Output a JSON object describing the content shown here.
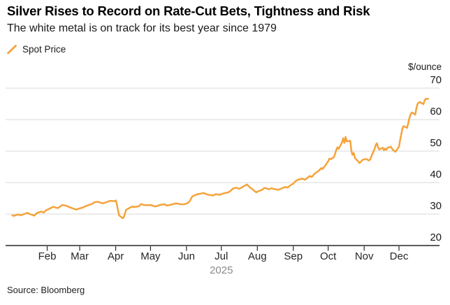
{
  "chart_data": {
    "type": "line",
    "title": "Silver Rises to Record on Rate-Cut Bets, Tightness and Risk",
    "subtitle": "The white metal is on track for its best year since 1979",
    "unit_label": "$/ounce",
    "source": "Source: Bloomberg",
    "grid": "horizontal-only",
    "legend_position": "top-left",
    "legend": [
      {
        "label": "Spot Price",
        "color": "#F5A33B"
      }
    ],
    "x_axis": {
      "year_label": "2025",
      "tick_labels": [
        "Feb",
        "Mar",
        "Apr",
        "May",
        "Jun",
        "Jul",
        "Aug",
        "Sep",
        "Oct",
        "Nov",
        "Dec"
      ],
      "tick_dates": [
        "2025-02-01",
        "2025-03-01",
        "2025-04-01",
        "2025-05-01",
        "2025-06-01",
        "2025-07-01",
        "2025-08-01",
        "2025-09-01",
        "2025-10-01",
        "2025-11-01",
        "2025-12-01"
      ],
      "range": [
        "2025-01-01",
        "2025-12-31"
      ]
    },
    "y_axis": {
      "side": "right",
      "ticks": [
        70,
        60,
        50,
        40,
        30,
        20
      ],
      "range": [
        20,
        70
      ]
    },
    "series": [
      {
        "name": "Spot Price",
        "color": "#F5A33B",
        "points": [
          [
            "2025-01-02",
            29.6
          ],
          [
            "2025-01-03",
            29.4
          ],
          [
            "2025-01-07",
            29.9
          ],
          [
            "2025-01-09",
            29.6
          ],
          [
            "2025-01-13",
            30.1
          ],
          [
            "2025-01-15",
            30.4
          ],
          [
            "2025-01-17",
            30.0
          ],
          [
            "2025-01-21",
            29.5
          ],
          [
            "2025-01-23",
            30.3
          ],
          [
            "2025-01-27",
            30.8
          ],
          [
            "2025-01-29",
            30.5
          ],
          [
            "2025-01-31",
            31.2
          ],
          [
            "2025-02-04",
            31.9
          ],
          [
            "2025-02-06",
            32.3
          ],
          [
            "2025-02-10",
            31.9
          ],
          [
            "2025-02-12",
            32.3
          ],
          [
            "2025-02-14",
            32.9
          ],
          [
            "2025-02-18",
            32.6
          ],
          [
            "2025-02-20",
            32.2
          ],
          [
            "2025-02-24",
            31.7
          ],
          [
            "2025-02-26",
            31.4
          ],
          [
            "2025-02-28",
            31.7
          ],
          [
            "2025-03-04",
            32.1
          ],
          [
            "2025-03-06",
            32.5
          ],
          [
            "2025-03-10",
            33.0
          ],
          [
            "2025-03-12",
            33.3
          ],
          [
            "2025-03-14",
            33.8
          ],
          [
            "2025-03-17",
            33.9
          ],
          [
            "2025-03-19",
            33.6
          ],
          [
            "2025-03-21",
            33.4
          ],
          [
            "2025-03-25",
            33.9
          ],
          [
            "2025-03-27",
            34.2
          ],
          [
            "2025-03-31",
            34.1
          ],
          [
            "2025-04-01",
            34.3
          ],
          [
            "2025-04-02",
            33.2
          ],
          [
            "2025-04-03",
            31.2
          ],
          [
            "2025-04-04",
            29.6
          ],
          [
            "2025-04-07",
            28.7
          ],
          [
            "2025-04-08",
            29.0
          ],
          [
            "2025-04-09",
            30.2
          ],
          [
            "2025-04-10",
            31.3
          ],
          [
            "2025-04-14",
            32.2
          ],
          [
            "2025-04-16",
            32.4
          ],
          [
            "2025-04-17",
            32.2
          ],
          [
            "2025-04-21",
            32.5
          ],
          [
            "2025-04-23",
            33.2
          ],
          [
            "2025-04-25",
            32.9
          ],
          [
            "2025-04-29",
            32.8
          ],
          [
            "2025-05-01",
            32.9
          ],
          [
            "2025-05-05",
            32.4
          ],
          [
            "2025-05-07",
            32.6
          ],
          [
            "2025-05-09",
            32.9
          ],
          [
            "2025-05-13",
            33.1
          ],
          [
            "2025-05-15",
            32.7
          ],
          [
            "2025-05-19",
            33.0
          ],
          [
            "2025-05-21",
            33.2
          ],
          [
            "2025-05-23",
            33.4
          ],
          [
            "2025-05-27",
            33.1
          ],
          [
            "2025-05-30",
            33.1
          ],
          [
            "2025-06-02",
            33.5
          ],
          [
            "2025-06-04",
            34.2
          ],
          [
            "2025-06-05",
            35.0
          ],
          [
            "2025-06-06",
            35.6
          ],
          [
            "2025-06-09",
            36.1
          ],
          [
            "2025-06-11",
            36.3
          ],
          [
            "2025-06-13",
            36.5
          ],
          [
            "2025-06-16",
            36.7
          ],
          [
            "2025-06-18",
            36.3
          ],
          [
            "2025-06-20",
            36.1
          ],
          [
            "2025-06-24",
            35.9
          ],
          [
            "2025-06-26",
            36.3
          ],
          [
            "2025-06-30",
            36.1
          ],
          [
            "2025-07-02",
            36.5
          ],
          [
            "2025-07-07",
            36.9
          ],
          [
            "2025-07-09",
            37.4
          ],
          [
            "2025-07-11",
            38.1
          ],
          [
            "2025-07-14",
            38.4
          ],
          [
            "2025-07-16",
            38.0
          ],
          [
            "2025-07-18",
            38.3
          ],
          [
            "2025-07-22",
            39.2
          ],
          [
            "2025-07-23",
            39.4
          ],
          [
            "2025-07-25",
            38.7
          ],
          [
            "2025-07-29",
            37.5
          ],
          [
            "2025-07-31",
            36.9
          ],
          [
            "2025-08-01",
            37.1
          ],
          [
            "2025-08-05",
            37.7
          ],
          [
            "2025-08-07",
            38.3
          ],
          [
            "2025-08-11",
            37.9
          ],
          [
            "2025-08-13",
            38.2
          ],
          [
            "2025-08-15",
            38.0
          ],
          [
            "2025-08-19",
            37.7
          ],
          [
            "2025-08-21",
            38.0
          ],
          [
            "2025-08-25",
            38.6
          ],
          [
            "2025-08-27",
            38.4
          ],
          [
            "2025-08-29",
            39.0
          ],
          [
            "2025-09-01",
            39.7
          ],
          [
            "2025-09-03",
            40.5
          ],
          [
            "2025-09-05",
            40.9
          ],
          [
            "2025-09-09",
            41.3
          ],
          [
            "2025-09-11",
            40.9
          ],
          [
            "2025-09-15",
            42.1
          ],
          [
            "2025-09-17",
            41.8
          ],
          [
            "2025-09-19",
            42.7
          ],
          [
            "2025-09-23",
            43.8
          ],
          [
            "2025-09-25",
            44.6
          ],
          [
            "2025-09-26",
            44.3
          ],
          [
            "2025-09-29",
            45.6
          ],
          [
            "2025-09-30",
            46.3
          ],
          [
            "2025-10-01",
            46.7
          ],
          [
            "2025-10-02",
            47.6
          ],
          [
            "2025-10-03",
            47.4
          ],
          [
            "2025-10-06",
            48.1
          ],
          [
            "2025-10-07",
            49.2
          ],
          [
            "2025-10-08",
            50.4
          ],
          [
            "2025-10-09",
            51.2
          ],
          [
            "2025-10-10",
            50.7
          ],
          [
            "2025-10-13",
            52.8
          ],
          [
            "2025-10-14",
            54.1
          ],
          [
            "2025-10-15",
            52.6
          ],
          [
            "2025-10-16",
            54.5
          ],
          [
            "2025-10-17",
            53.1
          ],
          [
            "2025-10-20",
            53.3
          ],
          [
            "2025-10-21",
            50.1
          ],
          [
            "2025-10-22",
            48.8
          ],
          [
            "2025-10-23",
            49.4
          ],
          [
            "2025-10-24",
            47.8
          ],
          [
            "2025-10-27",
            46.7
          ],
          [
            "2025-10-28",
            46.2
          ],
          [
            "2025-10-30",
            46.9
          ],
          [
            "2025-10-31",
            47.3
          ],
          [
            "2025-11-03",
            47.5
          ],
          [
            "2025-11-05",
            47.0
          ],
          [
            "2025-11-06",
            47.3
          ],
          [
            "2025-11-07",
            48.1
          ],
          [
            "2025-11-10",
            50.7
          ],
          [
            "2025-11-11",
            52.0
          ],
          [
            "2025-11-12",
            52.5
          ],
          [
            "2025-11-13",
            51.2
          ],
          [
            "2025-11-14",
            50.5
          ],
          [
            "2025-11-17",
            51.1
          ],
          [
            "2025-11-18",
            50.3
          ],
          [
            "2025-11-19",
            50.8
          ],
          [
            "2025-11-20",
            50.4
          ],
          [
            "2025-11-21",
            51.0
          ],
          [
            "2025-11-24",
            51.4
          ],
          [
            "2025-11-25",
            50.8
          ],
          [
            "2025-11-26",
            50.3
          ],
          [
            "2025-11-28",
            49.8
          ],
          [
            "2025-12-01",
            51.4
          ],
          [
            "2025-12-02",
            53.6
          ],
          [
            "2025-12-03",
            55.4
          ],
          [
            "2025-12-04",
            57.3
          ],
          [
            "2025-12-05",
            57.9
          ],
          [
            "2025-12-08",
            57.4
          ],
          [
            "2025-12-09",
            58.9
          ],
          [
            "2025-12-10",
            60.6
          ],
          [
            "2025-12-11",
            61.6
          ],
          [
            "2025-12-12",
            62.3
          ],
          [
            "2025-12-15",
            61.6
          ],
          [
            "2025-12-16",
            63.6
          ],
          [
            "2025-12-17",
            65.0
          ],
          [
            "2025-12-18",
            65.4
          ],
          [
            "2025-12-19",
            65.6
          ],
          [
            "2025-12-22",
            64.9
          ],
          [
            "2025-12-23",
            66.1
          ],
          [
            "2025-12-24",
            66.6
          ],
          [
            "2025-12-26",
            66.6
          ]
        ]
      }
    ]
  },
  "colors": {
    "line": "#F5A33B",
    "gridline": "#d9d9d9",
    "axis": "#262626",
    "background": "#ffffff"
  }
}
